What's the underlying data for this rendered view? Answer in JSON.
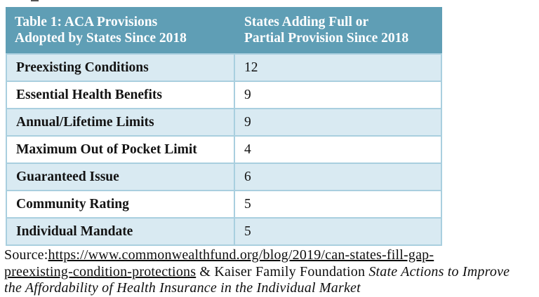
{
  "table": {
    "header": {
      "col1_line1": "Table 1: ACA Provisions",
      "col1_line2": "Adopted by States Since 2018",
      "col2_line1": "States Adding Full or",
      "col2_line2": "Partial Provision Since 2018"
    },
    "rows": [
      {
        "label": "Preexisting Conditions",
        "value": "12"
      },
      {
        "label": "Essential Health Benefits",
        "value": "9"
      },
      {
        "label": "Annual/Lifetime Limits",
        "value": "9"
      },
      {
        "label": "Maximum Out of Pocket Limit",
        "value": "4"
      },
      {
        "label": "Guaranteed Issue",
        "value": "6"
      },
      {
        "label": "Community Rating",
        "value": "5"
      },
      {
        "label": "Individual Mandate",
        "value": "5"
      }
    ],
    "colors": {
      "header_bg": "#5F9EB5",
      "header_text": "#FFFFFF",
      "row_alt_bg": "#D9EAF2",
      "row_bg": "#FFFFFF",
      "border": "#A9CFDF",
      "text": "#131313"
    }
  },
  "source": {
    "label": "Source:",
    "link_line1": "https://www.commonwealthfund.org/blog/2019/can-states-fill-gap-",
    "link_line2": "preexisting-condition-protections",
    "middle": " & Kaiser Family Foundation ",
    "italic_line2": "State Actions to Improve",
    "italic_line3": "the Affordability of Health Insurance in the Individual Market"
  }
}
